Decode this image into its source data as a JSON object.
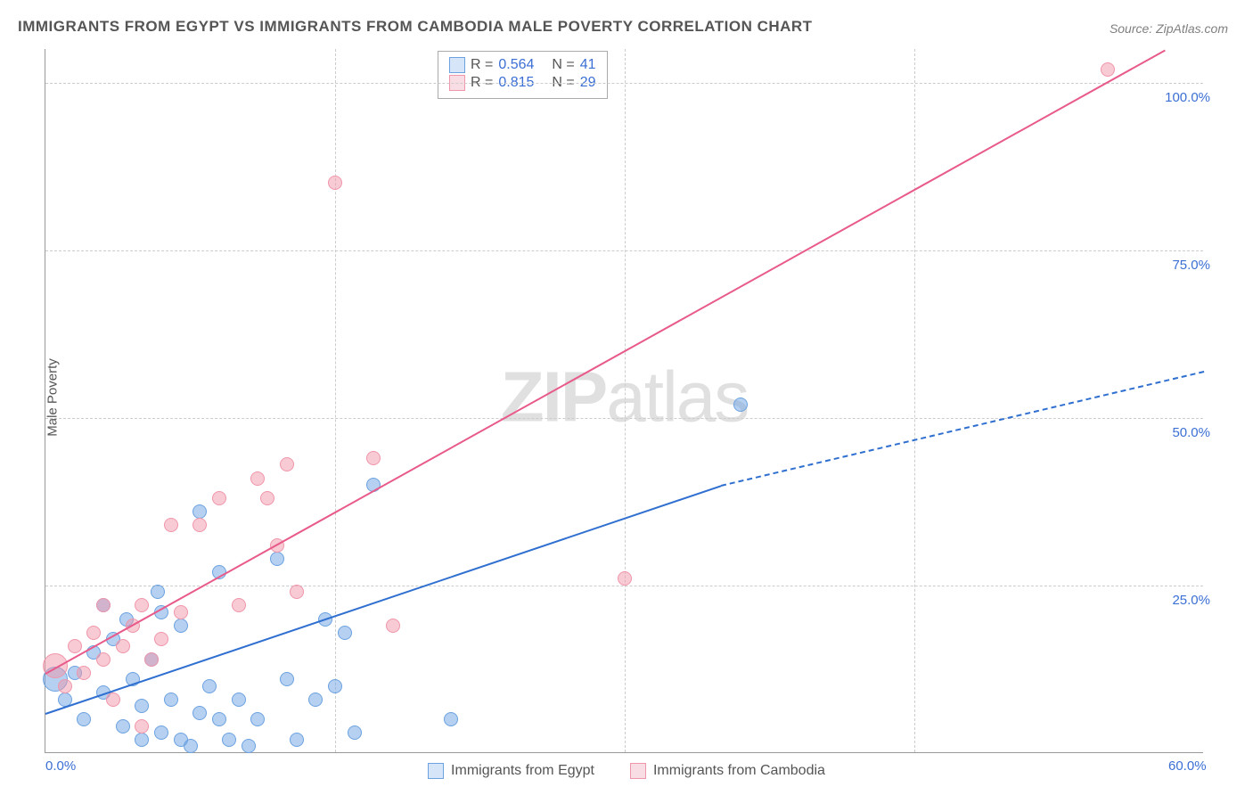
{
  "title": "IMMIGRANTS FROM EGYPT VS IMMIGRANTS FROM CAMBODIA MALE POVERTY CORRELATION CHART",
  "source": "Source: ZipAtlas.com",
  "ylabel": "Male Poverty",
  "watermark_bold": "ZIP",
  "watermark_light": "atlas",
  "chart": {
    "type": "scatter-correlation",
    "x_range": [
      0,
      60
    ],
    "y_range": [
      0,
      105
    ],
    "x_ticks": [
      {
        "v": 0,
        "label": "0.0%"
      },
      {
        "v": 60,
        "label": "60.0%"
      }
    ],
    "y_ticks": [
      {
        "v": 25,
        "label": "25.0%"
      },
      {
        "v": 50,
        "label": "50.0%"
      },
      {
        "v": 75,
        "label": "75.0%"
      },
      {
        "v": 100,
        "label": "100.0%"
      }
    ],
    "x_gridlines": [
      15,
      30,
      45
    ],
    "background_color": "#ffffff",
    "grid_color": "#cccccc",
    "axis_color": "#999999",
    "tick_label_color": "#3b6fd4",
    "marker_radius": 8,
    "large_marker_radius": 14
  },
  "series": [
    {
      "id": "egypt",
      "label": "Immigrants from Egypt",
      "color_fill": "rgba(108,162,225,0.5)",
      "color_stroke": "#6ca2e1",
      "swatch_fill": "#d6e5f7",
      "swatch_border": "#6ca2e1",
      "line_color": "#2f6fd0",
      "R": "0.564",
      "N": "41",
      "regression": {
        "x1": 0,
        "y1": 6,
        "x2": 35,
        "y2": 40
      },
      "regression_dashed": {
        "x1": 35,
        "y1": 40,
        "x2": 60,
        "y2": 57
      },
      "points": [
        {
          "x": 0.5,
          "y": 11,
          "r": 14
        },
        {
          "x": 1,
          "y": 8
        },
        {
          "x": 1.5,
          "y": 12
        },
        {
          "x": 2,
          "y": 5
        },
        {
          "x": 2.5,
          "y": 15
        },
        {
          "x": 3,
          "y": 9
        },
        {
          "x": 3.5,
          "y": 17
        },
        {
          "x": 4,
          "y": 4
        },
        {
          "x": 4.2,
          "y": 20
        },
        {
          "x": 4.5,
          "y": 11
        },
        {
          "x": 5,
          "y": 7
        },
        {
          "x": 5,
          "y": 2
        },
        {
          "x": 5.5,
          "y": 14
        },
        {
          "x": 5.8,
          "y": 24
        },
        {
          "x": 6,
          "y": 3
        },
        {
          "x": 6.5,
          "y": 8
        },
        {
          "x": 7,
          "y": 19
        },
        {
          "x": 7,
          "y": 2
        },
        {
          "x": 7.5,
          "y": 1
        },
        {
          "x": 8,
          "y": 6
        },
        {
          "x": 8,
          "y": 36
        },
        {
          "x": 8.5,
          "y": 10
        },
        {
          "x": 9,
          "y": 5
        },
        {
          "x": 9,
          "y": 27
        },
        {
          "x": 9.5,
          "y": 2
        },
        {
          "x": 10,
          "y": 8
        },
        {
          "x": 10.5,
          "y": 1
        },
        {
          "x": 11,
          "y": 5
        },
        {
          "x": 12,
          "y": 29
        },
        {
          "x": 12.5,
          "y": 11
        },
        {
          "x": 13,
          "y": 2
        },
        {
          "x": 14,
          "y": 8
        },
        {
          "x": 14.5,
          "y": 20
        },
        {
          "x": 15,
          "y": 10
        },
        {
          "x": 15.5,
          "y": 18
        },
        {
          "x": 16,
          "y": 3
        },
        {
          "x": 17,
          "y": 40
        },
        {
          "x": 21,
          "y": 5
        },
        {
          "x": 36,
          "y": 52
        },
        {
          "x": 6,
          "y": 21
        },
        {
          "x": 3,
          "y": 22
        }
      ]
    },
    {
      "id": "cambodia",
      "label": "Immigrants from Cambodia",
      "color_fill": "rgba(240,150,170,0.5)",
      "color_stroke": "#f096aa",
      "swatch_fill": "#f9dde4",
      "swatch_border": "#f096aa",
      "line_color": "#e85a8a",
      "R": "0.815",
      "N": "29",
      "regression": {
        "x1": 0,
        "y1": 12,
        "x2": 58,
        "y2": 105
      },
      "points": [
        {
          "x": 0.5,
          "y": 13,
          "r": 14
        },
        {
          "x": 1,
          "y": 10
        },
        {
          "x": 1.5,
          "y": 16
        },
        {
          "x": 2,
          "y": 12
        },
        {
          "x": 2.5,
          "y": 18
        },
        {
          "x": 3,
          "y": 14
        },
        {
          "x": 3,
          "y": 22
        },
        {
          "x": 3.5,
          "y": 8
        },
        {
          "x": 4,
          "y": 16
        },
        {
          "x": 4.5,
          "y": 19
        },
        {
          "x": 5,
          "y": 4
        },
        {
          "x": 5,
          "y": 22
        },
        {
          "x": 5.5,
          "y": 14
        },
        {
          "x": 6,
          "y": 17
        },
        {
          "x": 6.5,
          "y": 34
        },
        {
          "x": 7,
          "y": 21
        },
        {
          "x": 8,
          "y": 34
        },
        {
          "x": 9,
          "y": 38
        },
        {
          "x": 10,
          "y": 22
        },
        {
          "x": 11,
          "y": 41
        },
        {
          "x": 11.5,
          "y": 38
        },
        {
          "x": 12,
          "y": 31
        },
        {
          "x": 12.5,
          "y": 43
        },
        {
          "x": 13,
          "y": 24
        },
        {
          "x": 15,
          "y": 85
        },
        {
          "x": 17,
          "y": 44
        },
        {
          "x": 18,
          "y": 19
        },
        {
          "x": 30,
          "y": 26
        },
        {
          "x": 55,
          "y": 102
        }
      ]
    }
  ],
  "legend_top": {
    "r_label": "R =",
    "n_label": "N ="
  }
}
